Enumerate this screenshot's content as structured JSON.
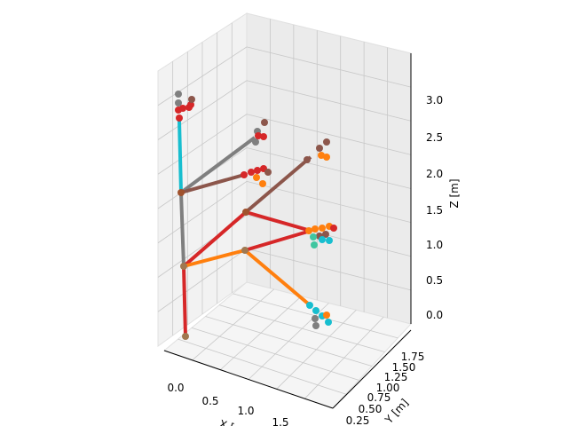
{
  "chart_data": {
    "type": "line3d",
    "title": "",
    "xlabel": "X [m]",
    "ylabel": "Y [m]",
    "zlabel": "Z [m]",
    "x_ticks": [
      "0.0",
      "0.5",
      "1.0",
      "1.5"
    ],
    "y_ticks": [
      "0.25",
      "0.50",
      "0.75",
      "1.00",
      "1.25",
      "1.50",
      "1.75"
    ],
    "z_ticks": [
      "0.0",
      "0.5",
      "1.0",
      "1.5",
      "2.0",
      "2.5",
      "3.0"
    ],
    "xlim": [
      -0.1,
      2.0
    ],
    "ylim": [
      0.2,
      1.85
    ],
    "zlim": [
      -0.15,
      3.45
    ],
    "grid": true,
    "series_colors": [
      "#d62728",
      "#7f7f7f",
      "#17becf",
      "#8c564b",
      "#ff7f0e",
      "#2ca02c"
    ],
    "description_of_marks": ""
  }
}
